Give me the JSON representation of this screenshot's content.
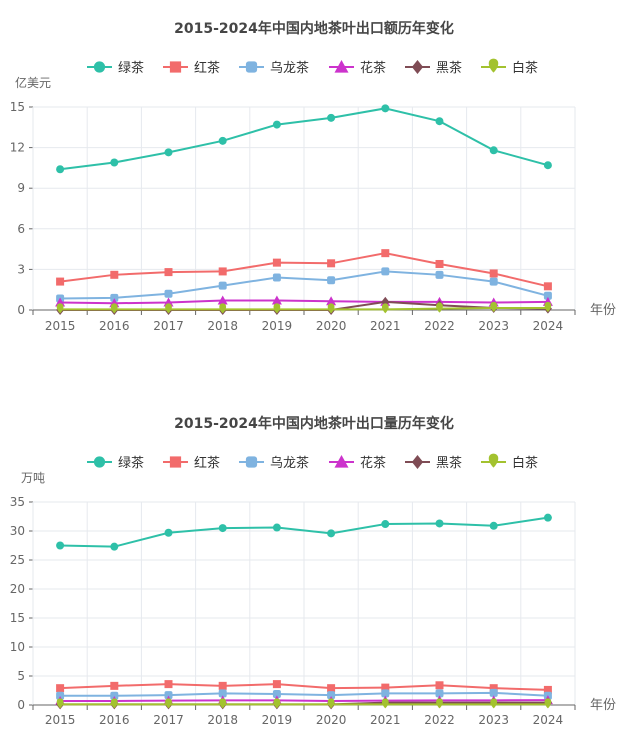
{
  "colors": {
    "绿茶": "#2ec0a8",
    "红茶": "#f26b6b",
    "乌龙茶": "#7fb3e0",
    "花茶": "#cc33cc",
    "黑茶": "#7f4c55",
    "白茶": "#a3c22f"
  },
  "chart_data": [
    {
      "type": "line",
      "title": "2015-2024年中国内地茶叶出口额历年变化",
      "ylabel": "亿美元",
      "xlabel": "年份",
      "ylim": [
        0,
        15
      ],
      "yticks": [
        0,
        3,
        6,
        9,
        12,
        15
      ],
      "legend": "top-center",
      "grid": true,
      "categories": [
        "2015",
        "2016",
        "2017",
        "2018",
        "2019",
        "2020",
        "2021",
        "2022",
        "2023",
        "2024"
      ],
      "series": [
        {
          "name": "绿茶",
          "marker": "circle",
          "values": [
            10.4,
            10.9,
            11.65,
            12.5,
            13.7,
            14.2,
            14.9,
            13.95,
            11.8,
            10.7
          ]
        },
        {
          "name": "红茶",
          "marker": "square",
          "values": [
            2.1,
            2.6,
            2.8,
            2.85,
            3.5,
            3.45,
            4.2,
            3.4,
            2.7,
            1.75
          ]
        },
        {
          "name": "乌龙茶",
          "marker": "roundrect",
          "values": [
            0.85,
            0.9,
            1.2,
            1.8,
            2.4,
            2.2,
            2.85,
            2.6,
            2.1,
            1.05
          ]
        },
        {
          "name": "花茶",
          "marker": "triangle",
          "values": [
            0.55,
            0.5,
            0.55,
            0.7,
            0.7,
            0.65,
            0.6,
            0.6,
            0.55,
            0.6
          ]
        },
        {
          "name": "黑茶",
          "marker": "diamond",
          "values": [
            0,
            0,
            0,
            0,
            0,
            0,
            0.6,
            0.35,
            0.15,
            0.1
          ]
        },
        {
          "name": "白茶",
          "marker": "pin",
          "values": [
            0.05,
            0.05,
            0.05,
            0.05,
            0.05,
            0.05,
            0.05,
            0.1,
            0.15,
            0.15
          ]
        }
      ]
    },
    {
      "type": "line",
      "title": "2015-2024年中国内地茶叶出口量历年变化",
      "ylabel": "万吨",
      "xlabel": "年份",
      "ylim": [
        0,
        35
      ],
      "yticks": [
        0,
        5,
        10,
        15,
        20,
        25,
        30,
        35
      ],
      "legend": "top-center",
      "grid": true,
      "categories": [
        "2015",
        "2016",
        "2017",
        "2018",
        "2019",
        "2020",
        "2021",
        "2022",
        "2023",
        "2024"
      ],
      "series": [
        {
          "name": "绿茶",
          "marker": "circle",
          "values": [
            27.5,
            27.3,
            29.7,
            30.5,
            30.6,
            29.6,
            31.2,
            31.3,
            30.9,
            32.3
          ]
        },
        {
          "name": "红茶",
          "marker": "square",
          "values": [
            2.9,
            3.3,
            3.6,
            3.3,
            3.6,
            2.9,
            3.0,
            3.4,
            2.9,
            2.6
          ]
        },
        {
          "name": "乌龙茶",
          "marker": "roundrect",
          "values": [
            1.6,
            1.6,
            1.7,
            2.0,
            1.9,
            1.7,
            2.0,
            2.0,
            2.1,
            1.6
          ]
        },
        {
          "name": "花茶",
          "marker": "triangle",
          "values": [
            0.7,
            0.7,
            0.75,
            0.8,
            0.8,
            0.7,
            0.75,
            0.8,
            0.8,
            0.85
          ]
        },
        {
          "name": "黑茶",
          "marker": "diamond",
          "values": [
            0.1,
            0.1,
            0.1,
            0.1,
            0.1,
            0.1,
            0.4,
            0.4,
            0.4,
            0.4
          ]
        },
        {
          "name": "白茶",
          "marker": "pin",
          "values": [
            0.1,
            0.1,
            0.1,
            0.1,
            0.1,
            0.1,
            0.1,
            0.1,
            0.1,
            0.1
          ]
        }
      ]
    }
  ]
}
